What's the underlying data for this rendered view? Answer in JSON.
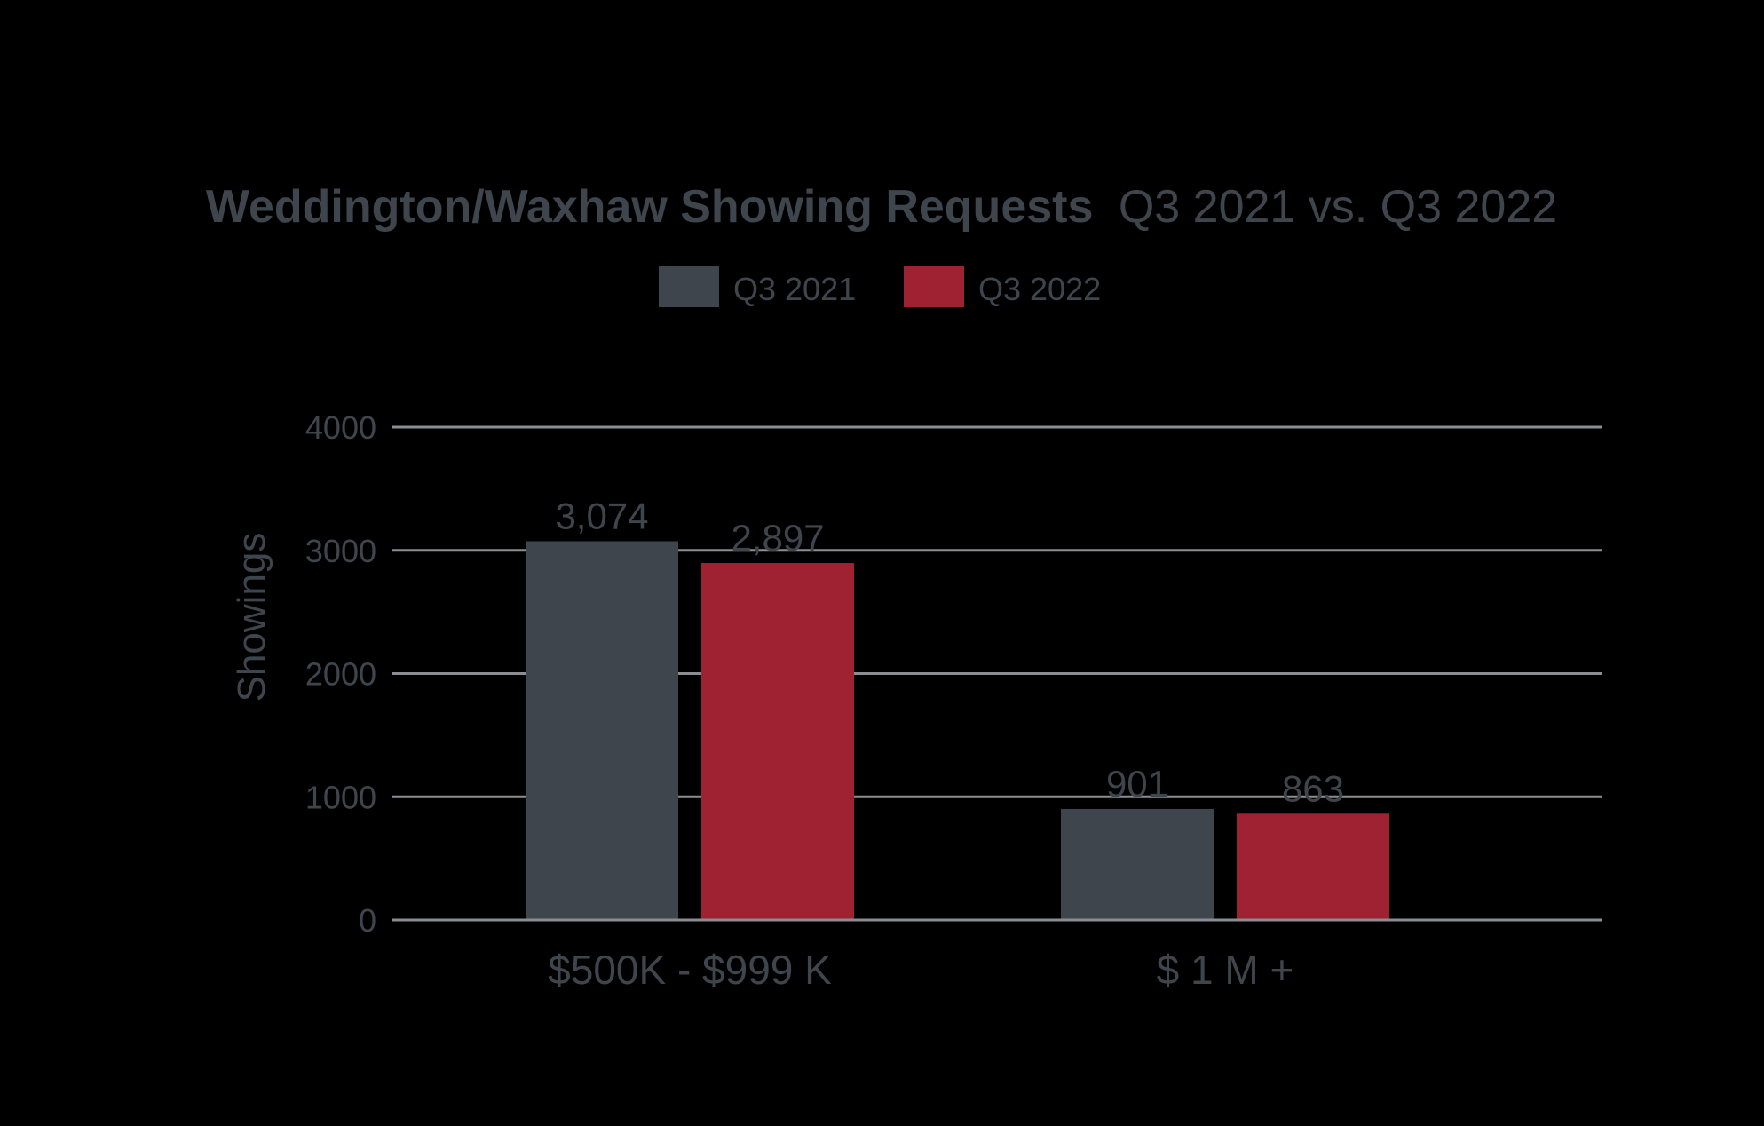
{
  "chart_data": {
    "type": "bar",
    "title_bold": "Weddington/Waxhaw Showing Requests",
    "title_rest": "Q3 2021 vs. Q3 2022",
    "categories": [
      "$500K - $999 K",
      "$ 1 M +"
    ],
    "series": [
      {
        "name": "Q3 2021",
        "values": [
          3074,
          901
        ],
        "labels": [
          "3,074",
          "901"
        ],
        "color": "#3f454d"
      },
      {
        "name": "Q3 2022",
        "values": [
          2897,
          863
        ],
        "labels": [
          "2,897",
          "863"
        ],
        "color": "#9e2231"
      }
    ],
    "ylabel": "Showings",
    "xlabel": "",
    "ylim": [
      0,
      4000
    ],
    "yticks": [
      0,
      1000,
      2000,
      3000,
      4000
    ],
    "grid": true,
    "legend_position": "top-center",
    "text_color": "#3f454d",
    "grid_color": "#8a8d91"
  }
}
